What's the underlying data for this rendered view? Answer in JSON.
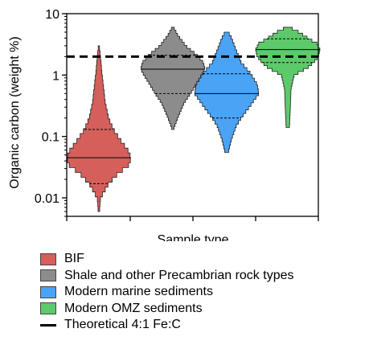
{
  "chart_data": {
    "type": "violin",
    "xlabel": "Sample type",
    "ylabel": "Organic carbon (weight %)",
    "yscale": "log",
    "ylim": [
      0.005,
      10
    ],
    "yticks": [
      {
        "value": 10,
        "label": "10"
      },
      {
        "value": 1,
        "label": "1"
      },
      {
        "value": 0.1,
        "label": "0.1"
      },
      {
        "value": 0.01,
        "label": "0.01"
      }
    ],
    "grid": false,
    "legend_position": "bottom",
    "series": [
      {
        "name": "BIF",
        "color": "#d55f5a",
        "min": 0.006,
        "max": 3.0,
        "median": 0.045,
        "q1": 0.017,
        "q3": 0.13,
        "profile": [
          [
            0.006,
            0.02
          ],
          [
            0.01,
            0.05
          ],
          [
            0.017,
            0.3
          ],
          [
            0.025,
            0.6
          ],
          [
            0.035,
            0.95
          ],
          [
            0.045,
            1.0
          ],
          [
            0.06,
            0.9
          ],
          [
            0.09,
            0.65
          ],
          [
            0.13,
            0.45
          ],
          [
            0.2,
            0.3
          ],
          [
            0.35,
            0.2
          ],
          [
            0.6,
            0.15
          ],
          [
            1.0,
            0.1
          ],
          [
            2.0,
            0.05
          ],
          [
            3.0,
            0.01
          ]
        ]
      },
      {
        "name": "Shale and other Precambrian rock types",
        "color": "#8c8c8c",
        "min": 0.13,
        "max": 6.0,
        "median": 1.25,
        "q1": 0.5,
        "q3": 2.1,
        "profile": [
          [
            0.13,
            0.02
          ],
          [
            0.2,
            0.15
          ],
          [
            0.35,
            0.35
          ],
          [
            0.5,
            0.55
          ],
          [
            0.75,
            0.75
          ],
          [
            1.0,
            0.9
          ],
          [
            1.25,
            1.0
          ],
          [
            1.6,
            0.95
          ],
          [
            2.1,
            0.75
          ],
          [
            3.0,
            0.4
          ],
          [
            4.5,
            0.15
          ],
          [
            6.0,
            0.02
          ]
        ]
      },
      {
        "name": "Modern marine sediments",
        "color": "#4aa3f5",
        "min": 0.055,
        "max": 5.0,
        "median": 0.5,
        "q1": 0.2,
        "q3": 1.05,
        "profile": [
          [
            0.055,
            0.05
          ],
          [
            0.09,
            0.15
          ],
          [
            0.15,
            0.3
          ],
          [
            0.2,
            0.45
          ],
          [
            0.3,
            0.7
          ],
          [
            0.5,
            1.0
          ],
          [
            0.7,
            0.95
          ],
          [
            1.05,
            0.75
          ],
          [
            1.6,
            0.45
          ],
          [
            2.5,
            0.3
          ],
          [
            4.0,
            0.15
          ],
          [
            5.0,
            0.05
          ]
        ]
      },
      {
        "name": "Modern OMZ sediments",
        "color": "#5cca6a",
        "min": 0.14,
        "max": 6.0,
        "median": 2.6,
        "q1": 1.6,
        "q3": 3.9,
        "profile": [
          [
            0.14,
            0.05
          ],
          [
            0.3,
            0.08
          ],
          [
            0.6,
            0.1
          ],
          [
            1.0,
            0.2
          ],
          [
            1.3,
            0.6
          ],
          [
            1.6,
            0.8
          ],
          [
            2.0,
            0.95
          ],
          [
            2.6,
            1.0
          ],
          [
            3.3,
            0.9
          ],
          [
            3.9,
            0.65
          ],
          [
            5.0,
            0.35
          ],
          [
            6.0,
            0.05
          ]
        ]
      }
    ],
    "reference_line": {
      "name": "Theoretical 4:1 Fe:C",
      "value": 2.0
    }
  },
  "legend": {
    "items": [
      {
        "label": "BIF",
        "color": "#d55f5a"
      },
      {
        "label": "Shale and other Precambrian rock types",
        "color": "#8c8c8c"
      },
      {
        "label": "Modern marine sediments",
        "color": "#4aa3f5"
      },
      {
        "label": "Modern OMZ sediments",
        "color": "#5cca6a"
      }
    ],
    "line_label": "Theoretical 4:1 Fe:C"
  }
}
